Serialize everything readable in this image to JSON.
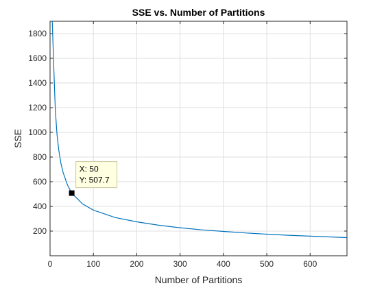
{
  "chart_data": {
    "type": "line",
    "title": "SSE vs. Number of Partitions",
    "xlabel": "Number of Partitions",
    "ylabel": "SSE",
    "xlim": [
      0,
      685
    ],
    "ylim": [
      0,
      1900
    ],
    "xticks": [
      0,
      100,
      200,
      300,
      400,
      500,
      600
    ],
    "yticks": [
      200,
      400,
      600,
      800,
      1000,
      1200,
      1400,
      1600,
      1800
    ],
    "grid": true,
    "series": [
      {
        "color": "#0072bd",
        "x": [
          1,
          2,
          3,
          5,
          8,
          12,
          16,
          20,
          25,
          30,
          40,
          50,
          75,
          100,
          150,
          200,
          250,
          300,
          350,
          400,
          450,
          500,
          550,
          600,
          650,
          685
        ],
        "y": [
          1900,
          1900,
          1900,
          1900,
          1580,
          1190,
          985,
          860,
          750,
          675,
          575,
          507.7,
          420,
          370,
          310,
          275,
          248,
          227,
          210,
          197,
          185,
          175,
          166,
          159,
          152,
          147
        ]
      }
    ],
    "datatip": {
      "x": 50,
      "y": 507.7,
      "x_text": "X: 50",
      "y_text": "Y: 507.7"
    }
  }
}
